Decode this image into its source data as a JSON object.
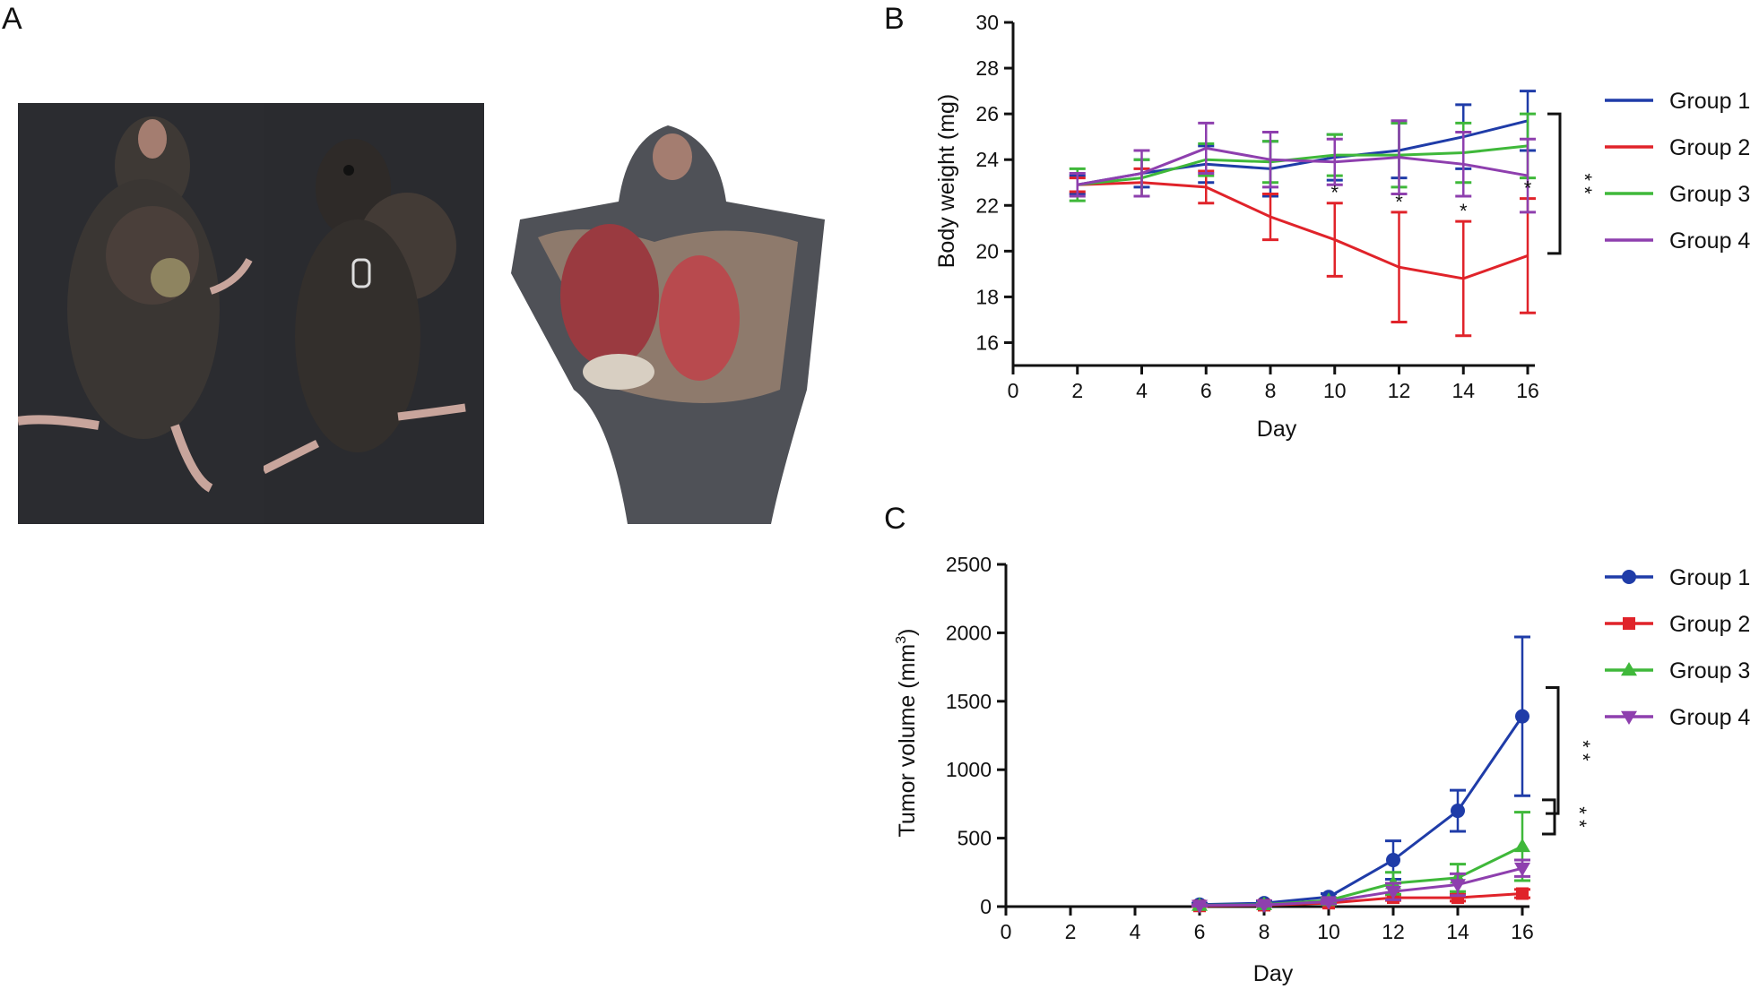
{
  "panels": {
    "a": "A",
    "b": "B",
    "c": "C"
  },
  "photos": {
    "mouse_left": "photo of mouse, ventral view with tumor",
    "mouse_middle": "photo of mouse, lateral view with tumor",
    "mouse_dissected": "photo of dissected mouse showing tumor"
  },
  "colors": {
    "group1": "#1f3ca8",
    "group2": "#e0232a",
    "group3": "#3fb83a",
    "group4": "#8e3fae",
    "photo_bg": "#2b2c30",
    "fur": "#3a3633",
    "tissue": "#b84a4e"
  },
  "chart_data": [
    {
      "type": "line",
      "panel": "B",
      "xlabel": "Day",
      "ylabel": "Body weight (mg)",
      "xlim": [
        0,
        16
      ],
      "ylim": [
        15,
        30
      ],
      "x_ticks": [
        0,
        2,
        4,
        6,
        8,
        10,
        12,
        14,
        16
      ],
      "y_ticks": [
        16,
        18,
        20,
        22,
        24,
        26,
        28,
        30
      ],
      "x": [
        2,
        4,
        6,
        8,
        10,
        12,
        14,
        16
      ],
      "series": [
        {
          "name": "Group 1",
          "marker": "none",
          "values": [
            22.9,
            23.4,
            23.8,
            23.6,
            24.1,
            24.4,
            25.0,
            25.7
          ],
          "errors": [
            0.4,
            0.6,
            0.8,
            1.2,
            1.0,
            1.2,
            1.4,
            1.3
          ]
        },
        {
          "name": "Group 2",
          "marker": "none",
          "values": [
            22.9,
            23.0,
            22.8,
            21.5,
            20.5,
            19.3,
            18.8,
            19.8
          ],
          "errors": [
            0.3,
            0.6,
            0.7,
            1.0,
            1.6,
            2.4,
            2.5,
            2.5
          ]
        },
        {
          "name": "Group 3",
          "marker": "none",
          "values": [
            22.9,
            23.2,
            24.0,
            23.9,
            24.2,
            24.2,
            24.3,
            24.6
          ],
          "errors": [
            0.7,
            0.8,
            0.7,
            0.9,
            0.9,
            1.4,
            1.3,
            1.4
          ]
        },
        {
          "name": "Group 4",
          "marker": "none",
          "values": [
            22.9,
            23.4,
            24.5,
            24.0,
            23.9,
            24.1,
            23.8,
            23.3
          ],
          "errors": [
            0.5,
            1.0,
            1.1,
            1.2,
            1.0,
            1.6,
            1.4,
            1.6
          ]
        }
      ],
      "point_annotations": [
        {
          "x": 10,
          "label": "*"
        },
        {
          "x": 12,
          "label": "*"
        },
        {
          "x": 14,
          "label": "*"
        },
        {
          "x": 16,
          "label": "*"
        }
      ],
      "brackets": [
        {
          "label": "* *",
          "from": 26,
          "to": 19.9
        }
      ],
      "legend": "right"
    },
    {
      "type": "line",
      "panel": "C",
      "xlabel": "Day",
      "ylabel": "Tumor volume (mm",
      "ylabel_sup": "3",
      "ylabel_tail": ")",
      "xlim": [
        0,
        16
      ],
      "ylim": [
        0,
        2500
      ],
      "x_ticks": [
        0,
        2,
        4,
        6,
        8,
        10,
        12,
        14,
        16
      ],
      "y_ticks": [
        0,
        500,
        1000,
        1500,
        2000,
        2500
      ],
      "x": [
        6,
        8,
        10,
        12,
        14,
        16
      ],
      "series": [
        {
          "name": "Group 1",
          "marker": "circle",
          "values": [
            15,
            25,
            70,
            340,
            700,
            1390
          ],
          "errors": [
            10,
            15,
            25,
            140,
            150,
            580
          ]
        },
        {
          "name": "Group 2",
          "marker": "square",
          "values": [
            5,
            10,
            25,
            65,
            65,
            95
          ],
          "errors": [
            5,
            8,
            10,
            20,
            25,
            30
          ]
        },
        {
          "name": "Group 3",
          "marker": "triangle-up",
          "values": [
            10,
            15,
            45,
            170,
            210,
            440
          ],
          "errors": [
            5,
            10,
            20,
            80,
            100,
            250
          ]
        },
        {
          "name": "Group 4",
          "marker": "triangle-down",
          "values": [
            8,
            12,
            35,
            110,
            160,
            280
          ],
          "errors": [
            5,
            8,
            15,
            60,
            80,
            60
          ]
        }
      ],
      "brackets": [
        {
          "label": "* *",
          "from": 1600,
          "to": 680
        },
        {
          "label": "* *",
          "from": 780,
          "to": 530
        }
      ],
      "legend": "right"
    }
  ]
}
